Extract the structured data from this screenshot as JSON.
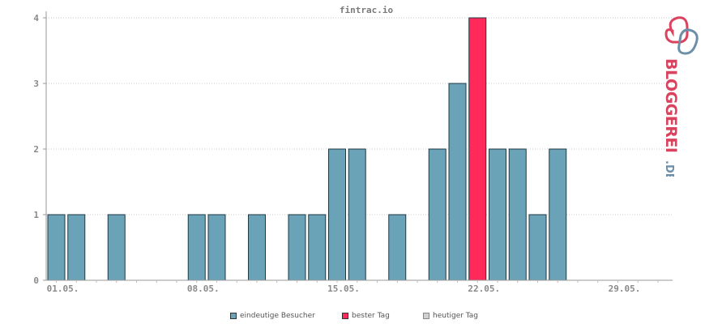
{
  "chart_data": {
    "type": "bar",
    "title": "fintrac.io",
    "x_tick_labels": [
      "01.05.",
      "08.05.",
      "15.05.",
      "22.05.",
      "29.05."
    ],
    "x_tick_days": [
      1,
      8,
      15,
      22,
      29
    ],
    "days": [
      1,
      2,
      3,
      4,
      5,
      6,
      7,
      8,
      9,
      10,
      11,
      12,
      13,
      14,
      15,
      16,
      17,
      18,
      19,
      20,
      21,
      22,
      23,
      24,
      25,
      26,
      27,
      28,
      29,
      30,
      31
    ],
    "values": [
      1,
      1,
      0,
      1,
      0,
      0,
      0,
      1,
      1,
      0,
      1,
      0,
      1,
      1,
      2,
      2,
      0,
      1,
      0,
      2,
      3,
      4,
      2,
      2,
      1,
      2,
      0,
      0,
      0,
      0,
      0
    ],
    "best_day": 22,
    "ylim": [
      0,
      4
    ],
    "y_ticks": [
      0,
      1,
      2,
      3,
      4
    ],
    "grid": "horizontal dotted",
    "legend_position": "bottom-center",
    "series": [
      {
        "name": "eindeutige Besucher",
        "color": "#6aa2b8"
      },
      {
        "name": "bester Tag",
        "color": "#ff2a5a"
      },
      {
        "name": "heutiger Tag",
        "color": "#d0d0d0"
      }
    ]
  },
  "logo": {
    "text": "BLOGGEREI",
    "suffix": ".DE",
    "colors": {
      "primary": "#d9435e",
      "secondary": "#6b8fa8"
    }
  }
}
